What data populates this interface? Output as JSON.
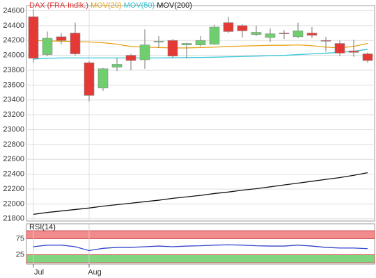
{
  "chart_data": [
    {
      "type": "candlestick",
      "name": "DAX (FRA-Indik.)",
      "name_color": "#e03030",
      "color_up": "#6fcf6f",
      "color_down": "#e53935",
      "categories": [
        "Jul",
        null,
        null,
        null,
        "Aug",
        null,
        null,
        null,
        null,
        null,
        null,
        null,
        null,
        null,
        null,
        null,
        null,
        null,
        null,
        null,
        null,
        null,
        null,
        null,
        null
      ],
      "open": [
        24520,
        24010,
        24250,
        24300,
        23900,
        23560,
        23840,
        24000,
        23940,
        24180,
        24200,
        24140,
        24140,
        24150,
        24440,
        24400,
        24280,
        24240,
        24300,
        24250,
        24300,
        24200,
        24160,
        24060,
        24020
      ],
      "high": [
        24620,
        24320,
        24300,
        24440,
        23920,
        23830,
        23960,
        24020,
        24350,
        24260,
        24220,
        24170,
        24260,
        24410,
        24520,
        24420,
        24400,
        24360,
        24340,
        24440,
        24380,
        24250,
        24200,
        24210,
        24040
      ],
      "low": [
        23900,
        23990,
        24150,
        24000,
        23380,
        23520,
        23790,
        23800,
        23820,
        24100,
        23970,
        23960,
        24120,
        24140,
        24300,
        24240,
        24260,
        24180,
        24220,
        24230,
        24230,
        24050,
        23990,
        23980,
        23900
      ],
      "close": [
        23960,
        24230,
        24200,
        24020,
        23460,
        23820,
        23880,
        23930,
        24140,
        24190,
        23990,
        24160,
        24200,
        24380,
        24320,
        24330,
        24310,
        24290,
        24290,
        24330,
        24270,
        24190,
        24030,
        24040,
        23930
      ],
      "series": [
        {
          "name": "MOV(20)",
          "color": "#e8a317",
          "values": [
            24200,
            24195,
            24190,
            24185,
            24180,
            24170,
            24150,
            24120,
            24110,
            24105,
            24100,
            24100,
            24105,
            24110,
            24120,
            24125,
            24130,
            24135,
            24135,
            24140,
            24130,
            24110,
            24100,
            24120,
            24160
          ]
        },
        {
          "name": "MOV(50)",
          "color": "#33c4d8",
          "values": [
            23950,
            23960,
            23965,
            23965,
            23965,
            23965,
            23965,
            23965,
            23965,
            23965,
            23968,
            23970,
            23972,
            23975,
            23980,
            23985,
            23990,
            23995,
            24000,
            24010,
            24020,
            24030,
            24040,
            24055,
            24080
          ]
        },
        {
          "name": "MOV(200)",
          "color": "#111111",
          "values": [
            21860,
            21885,
            21905,
            21925,
            21945,
            21970,
            21990,
            22010,
            22030,
            22050,
            22075,
            22095,
            22115,
            22140,
            22160,
            22185,
            22205,
            22230,
            22255,
            22280,
            22305,
            22330,
            22355,
            22385,
            22420
          ]
        }
      ],
      "ylim": [
        21770,
        24670
      ],
      "yticks": [
        21800,
        22000,
        22200,
        22400,
        22600,
        22800,
        23000,
        23200,
        23400,
        23600,
        23800,
        24000,
        24200,
        24400,
        24600
      ],
      "grid": true
    },
    {
      "type": "line",
      "name": "RSI(14)",
      "color": "#3344cc",
      "values": [
        50,
        55,
        55,
        50,
        38,
        45,
        48,
        48,
        50,
        52,
        50,
        52,
        53,
        55,
        56,
        55,
        53,
        52,
        52,
        55,
        52,
        48,
        46,
        46,
        44
      ],
      "ylim": [
        0,
        100
      ],
      "yticks": [
        25,
        75
      ],
      "zones": [
        {
          "from": 75,
          "to": 100,
          "color": "#f28b8b"
        },
        {
          "from": 0,
          "to": 25,
          "color": "#7fd67f"
        }
      ]
    }
  ]
}
